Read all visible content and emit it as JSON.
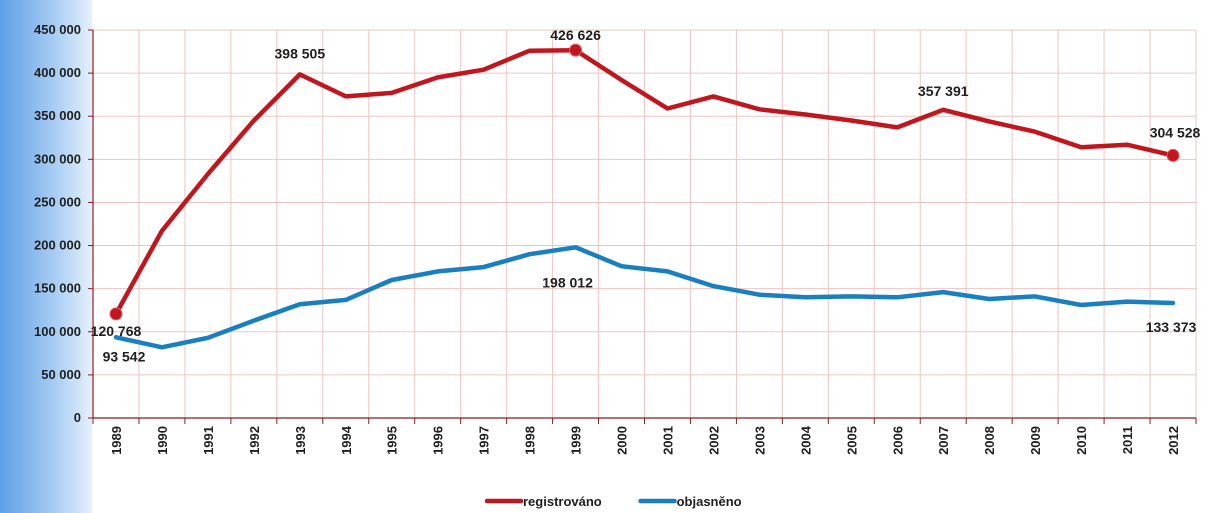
{
  "chart_data": {
    "type": "line",
    "categories": [
      "1989",
      "1990",
      "1991",
      "1992",
      "1993",
      "1994",
      "1995",
      "1996",
      "1997",
      "1998",
      "1999",
      "2000",
      "2001",
      "2002",
      "2003",
      "2004",
      "2005",
      "2006",
      "2007",
      "2008",
      "2009",
      "2010",
      "2011",
      "2012"
    ],
    "series": [
      {
        "name": "registrováno",
        "color": "#c0161d",
        "values": [
          120768,
          217000,
          283000,
          345000,
          398505,
          373000,
          377000,
          395000,
          404000,
          426000,
          426626,
          392000,
          359000,
          373000,
          358000,
          352000,
          345000,
          337000,
          357391,
          344000,
          332000,
          314000,
          317000,
          304528
        ]
      },
      {
        "name": "objasněno",
        "color": "#1a7fc0",
        "values": [
          93542,
          82000,
          93000,
          113000,
          132000,
          137000,
          160000,
          170000,
          175000,
          190000,
          198012,
          176000,
          170000,
          153000,
          143000,
          140000,
          141000,
          140000,
          146000,
          138000,
          141000,
          131000,
          135000,
          133373
        ]
      }
    ],
    "ylim": [
      0,
      450000
    ],
    "yticks": [
      0,
      50000,
      100000,
      150000,
      200000,
      250000,
      300000,
      350000,
      400000,
      450000
    ],
    "ytick_labels": [
      "0",
      "50 000",
      "100 000",
      "150 000",
      "200 000",
      "250 000",
      "300 000",
      "350 000",
      "400 000",
      "450 000"
    ],
    "grid": true,
    "legend_position": "bottom",
    "annotations": [
      {
        "series": 0,
        "category": "1989",
        "text": "120 768",
        "marker": true
      },
      {
        "series": 0,
        "category": "1993",
        "text": "398 505",
        "marker": false
      },
      {
        "series": 0,
        "category": "1999",
        "text": "426 626",
        "marker": true
      },
      {
        "series": 0,
        "category": "2007",
        "text": "357 391",
        "marker": false
      },
      {
        "series": 0,
        "category": "2012",
        "text": "304 528",
        "marker": true
      },
      {
        "series": 1,
        "category": "1989",
        "text": "93 542",
        "marker": false
      },
      {
        "series": 1,
        "category": "1999",
        "text": "198 012",
        "marker": false
      },
      {
        "series": 1,
        "category": "2012",
        "text": "133 373",
        "marker": false
      }
    ]
  }
}
